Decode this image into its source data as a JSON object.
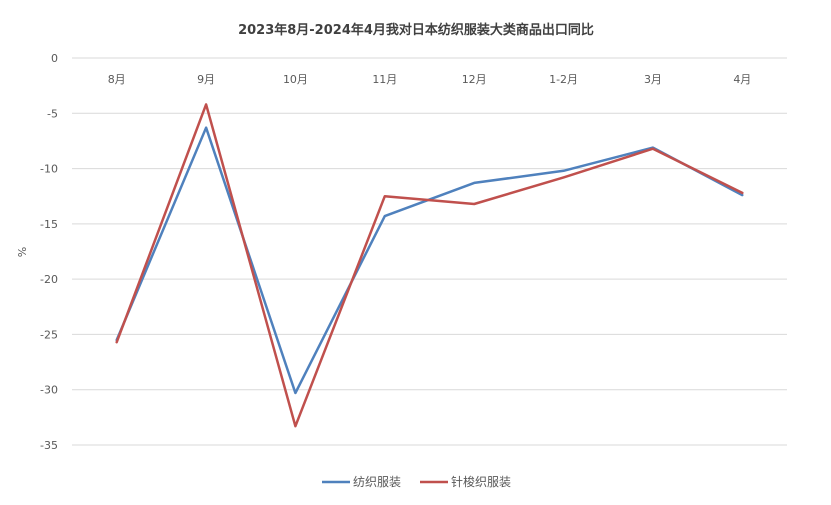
{
  "chart_data": {
    "type": "line",
    "title": "2023年8月-2024年4月我对日本纺织服装大类商品出口同比",
    "xlabel": "",
    "ylabel": "%",
    "categories": [
      "8月",
      "9月",
      "10月",
      "11月",
      "12月",
      "1-2月",
      "3月",
      "4月"
    ],
    "ylim": [
      -35,
      0
    ],
    "yticks": [
      0,
      -5,
      -10,
      -15,
      -20,
      -25,
      -30,
      -35
    ],
    "grid": true,
    "legend_position": "bottom",
    "x_axis_position": "top",
    "series": [
      {
        "name": "纺织服装",
        "color": "#4F81BD",
        "values": [
          -25.5,
          -6.3,
          -30.3,
          -14.3,
          -11.3,
          -10.2,
          -8.1,
          -12.4
        ]
      },
      {
        "name": "针梭织服装",
        "color": "#C0504D",
        "values": [
          -25.7,
          -4.2,
          -33.3,
          -12.5,
          -13.2,
          -10.8,
          -8.2,
          -12.2
        ]
      }
    ]
  }
}
